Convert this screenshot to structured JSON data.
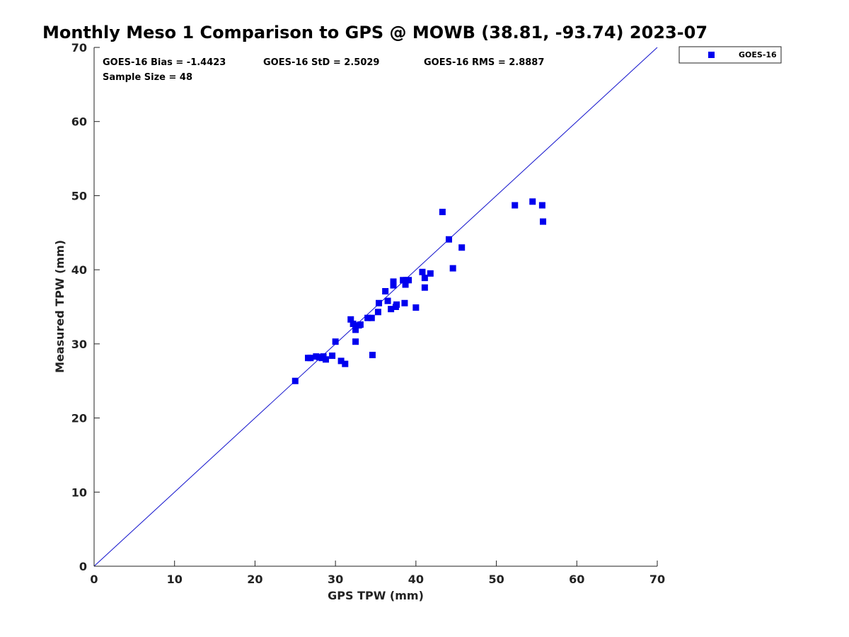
{
  "chart_data": {
    "type": "scatter",
    "title": "Monthly Meso 1 Comparison to GPS @ MOWB (38.81, -93.74) 2023-07",
    "xlabel": "GPS TPW (mm)",
    "ylabel": "Measured TPW (mm)",
    "xlim": [
      0,
      70
    ],
    "ylim": [
      0,
      70
    ],
    "xticks": [
      "0",
      "10",
      "20",
      "30",
      "40",
      "50",
      "60",
      "70"
    ],
    "yticks": [
      "0",
      "10",
      "20",
      "30",
      "40",
      "50",
      "60",
      "70"
    ],
    "grid": false,
    "legend": {
      "position": "top-right",
      "entries": [
        "GOES-16"
      ]
    },
    "annotations": {
      "bias": "GOES-16 Bias = -1.4423",
      "std": "GOES-16 StD = 2.5029",
      "rms": "GOES-16 RMS = 2.8887",
      "sample": "Sample Size = 48"
    },
    "reference_line": {
      "x": [
        0,
        70
      ],
      "y": [
        0,
        70
      ],
      "color": "#1010cc"
    },
    "series": [
      {
        "name": "GOES-16",
        "color": "#0000ee",
        "marker": "square",
        "points": [
          [
            25.0,
            25.0
          ],
          [
            26.6,
            28.1
          ],
          [
            26.9,
            28.1
          ],
          [
            27.6,
            28.3
          ],
          [
            28.0,
            28.2
          ],
          [
            28.3,
            28.1
          ],
          [
            28.5,
            28.3
          ],
          [
            28.8,
            27.9
          ],
          [
            29.6,
            28.4
          ],
          [
            30.0,
            30.3
          ],
          [
            30.7,
            27.7
          ],
          [
            31.2,
            27.3
          ],
          [
            31.9,
            33.3
          ],
          [
            32.2,
            32.7
          ],
          [
            32.5,
            31.9
          ],
          [
            32.5,
            30.3
          ],
          [
            32.9,
            32.5
          ],
          [
            34.0,
            33.5
          ],
          [
            34.5,
            33.5
          ],
          [
            34.6,
            28.5
          ],
          [
            35.3,
            34.3
          ],
          [
            35.4,
            35.5
          ],
          [
            36.2,
            37.1
          ],
          [
            36.5,
            35.8
          ],
          [
            36.9,
            34.7
          ],
          [
            37.2,
            38.4
          ],
          [
            37.2,
            37.9
          ],
          [
            37.5,
            35.0
          ],
          [
            37.6,
            35.3
          ],
          [
            38.4,
            38.6
          ],
          [
            38.6,
            35.5
          ],
          [
            38.7,
            38.0
          ],
          [
            38.8,
            38.6
          ],
          [
            39.1,
            38.6
          ],
          [
            40.0,
            34.9
          ],
          [
            40.8,
            39.7
          ],
          [
            41.1,
            38.9
          ],
          [
            41.1,
            37.6
          ],
          [
            41.8,
            39.5
          ],
          [
            43.3,
            47.8
          ],
          [
            44.1,
            44.1
          ],
          [
            44.6,
            40.2
          ],
          [
            45.7,
            43.0
          ],
          [
            52.3,
            48.7
          ],
          [
            54.5,
            49.2
          ],
          [
            55.7,
            48.7
          ],
          [
            55.8,
            46.5
          ],
          [
            33.1,
            32.6
          ]
        ]
      }
    ]
  }
}
